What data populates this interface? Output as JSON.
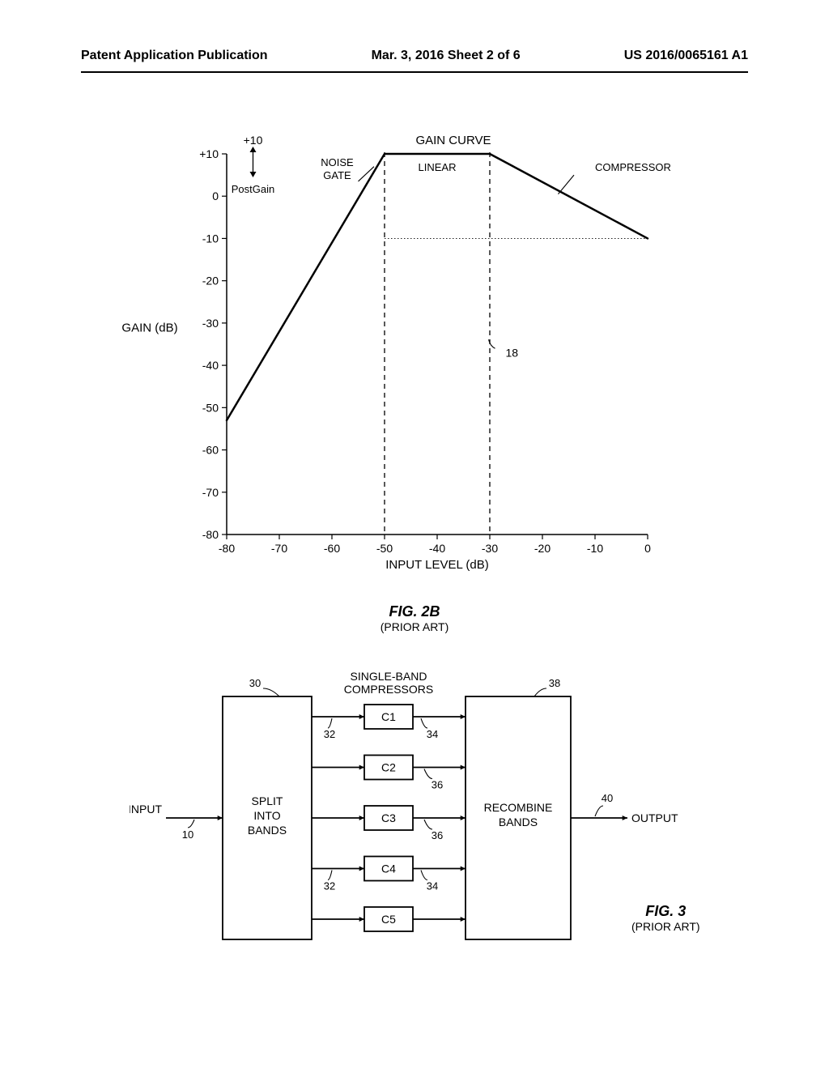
{
  "header": {
    "left": "Patent Application Publication",
    "center": "Mar. 3, 2016  Sheet 2 of 6",
    "right": "US 2016/0065161 A1"
  },
  "chart": {
    "type": "line",
    "title": "GAIN CURVE",
    "xlabel": "INPUT LEVEL (dB)",
    "ylabel": "GAIN (dB)",
    "xlim": [
      -80,
      0
    ],
    "ylim": [
      -80,
      10
    ],
    "xtick_step": 10,
    "ytick_step": 10,
    "xticks": [
      -80,
      -70,
      -60,
      -50,
      -40,
      -30,
      -20,
      -10,
      0
    ],
    "yticks": [
      -80,
      -70,
      -60,
      -50,
      -60,
      -40,
      -30,
      -20,
      -10,
      0,
      10
    ],
    "yticks_labels": [
      "-80",
      "-70",
      "-60",
      "-50",
      "-40",
      "-30",
      "-20",
      "-10",
      "0",
      "+10"
    ],
    "curve": [
      {
        "x": -80,
        "y": -53
      },
      {
        "x": -50,
        "y": 10
      },
      {
        "x": -30,
        "y": 10
      },
      {
        "x": 0,
        "y": -10
      }
    ],
    "dashed_verticals": [
      -50,
      -30
    ],
    "dotted_horizontal_y": -10,
    "dotted_horizontal_xmin": -50,
    "postgain_text": "+10",
    "postgain_label": "PostGain",
    "noise_gate_label": "NOISE\nGATE",
    "linear_label": "LINEAR",
    "compressor_label": "COMPRESSOR",
    "callout_18": "18",
    "line_color": "#000000",
    "line_width": 2.5,
    "axis_color": "#000000",
    "tick_fontsize": 14,
    "label_fontsize": 15,
    "title_fontsize": 15,
    "background_color": "#ffffff"
  },
  "fig2b": {
    "label": "FIG. 2B",
    "sub": "(PRIOR ART)"
  },
  "diagram": {
    "type": "flowchart",
    "title": "SINGLE-BAND\nCOMPRESSORS",
    "input_label": "INPUT",
    "output_label": "OUTPUT",
    "split_label": "SPLIT\nINTO\nBANDS",
    "recombine_label": "RECOMBINE\nBANDS",
    "compressors": [
      "C1",
      "C2",
      "C3",
      "C4",
      "C5"
    ],
    "refs": {
      "input": "10",
      "split": "30",
      "arrow32_a": "32",
      "arrow32_b": "32",
      "c1_34": "34",
      "c2_36": "36",
      "c3_36": "36",
      "c4_34": "34",
      "recombine": "38",
      "output": "40"
    },
    "box_color": "#000000",
    "line_width": 1.8,
    "fontsize": 14
  },
  "fig3": {
    "label": "FIG. 3",
    "sub": "(PRIOR ART)"
  }
}
